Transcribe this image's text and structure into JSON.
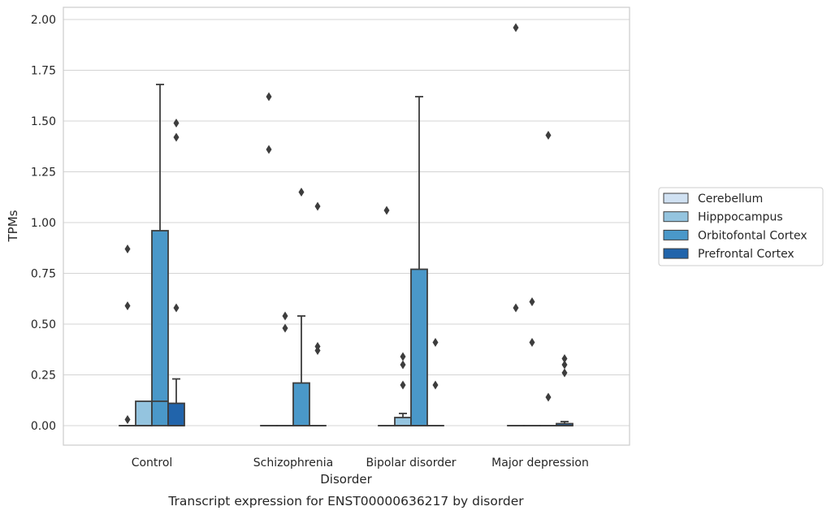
{
  "chart_data": {
    "type": "box",
    "title": "",
    "caption": "Transcript expression for ENST00000636217 by disorder",
    "xlabel": "Disorder",
    "ylabel": "TPMs",
    "ylim": [
      -0.09,
      2.06
    ],
    "yticks": [
      "0.00",
      "0.25",
      "0.50",
      "0.75",
      "1.00",
      "1.25",
      "1.50",
      "1.75",
      "2.00"
    ],
    "grid": "horizontal",
    "legend_position": "right",
    "categories": [
      "Control",
      "Schizophrenia",
      "Bipolar disorder",
      "Major depression"
    ],
    "series": [
      {
        "name": "Cerebellum",
        "color": "#d0e1f2",
        "boxes": [
          {
            "q1": 0,
            "median": 0,
            "q3": 0,
            "whisker_low": 0,
            "whisker_high": 0,
            "outliers": [
              0.03,
              0.59,
              0.87
            ]
          },
          {
            "q1": 0,
            "median": 0,
            "q3": 0,
            "whisker_low": 0,
            "whisker_high": 0,
            "outliers": [
              1.36,
              1.62
            ]
          },
          {
            "q1": 0,
            "median": 0,
            "q3": 0,
            "whisker_low": 0,
            "whisker_high": 0,
            "outliers": [
              1.06
            ]
          },
          {
            "q1": 0,
            "median": 0,
            "q3": 0,
            "whisker_low": 0,
            "whisker_high": 0,
            "outliers": [
              0.58,
              1.96
            ]
          }
        ]
      },
      {
        "name": "Hipppocampus",
        "color": "#94c4df",
        "boxes": [
          {
            "q1": 0,
            "median": 0,
            "q3": 0.12,
            "whisker_low": 0,
            "whisker_high": 0.12,
            "outliers": []
          },
          {
            "q1": 0,
            "median": 0,
            "q3": 0,
            "whisker_low": 0,
            "whisker_high": 0,
            "outliers": [
              0.48,
              0.54
            ]
          },
          {
            "q1": 0,
            "median": 0,
            "q3": 0.04,
            "whisker_low": 0,
            "whisker_high": 0.06,
            "outliers": [
              0.2,
              0.3,
              0.34
            ]
          },
          {
            "q1": 0,
            "median": 0,
            "q3": 0,
            "whisker_low": 0,
            "whisker_high": 0,
            "outliers": [
              0.41,
              0.61
            ]
          }
        ]
      },
      {
        "name": "Orbitofontal Cortex",
        "color": "#4a98c9",
        "boxes": [
          {
            "q1": 0,
            "median": 0.12,
            "q3": 0.96,
            "whisker_low": 0,
            "whisker_high": 1.68,
            "outliers": []
          },
          {
            "q1": 0,
            "median": 0,
            "q3": 0.21,
            "whisker_low": 0,
            "whisker_high": 0.54,
            "outliers": [
              1.15
            ]
          },
          {
            "q1": 0,
            "median": 0,
            "q3": 0.77,
            "whisker_low": 0,
            "whisker_high": 1.62,
            "outliers": []
          },
          {
            "q1": 0,
            "median": 0,
            "q3": 0,
            "whisker_low": 0,
            "whisker_high": 0,
            "outliers": [
              0.14,
              1.43
            ]
          }
        ]
      },
      {
        "name": "Prefrontal Cortex",
        "color": "#2164ab",
        "boxes": [
          {
            "q1": 0,
            "median": 0,
            "q3": 0.11,
            "whisker_low": 0,
            "whisker_high": 0.23,
            "outliers": [
              0.58,
              1.42,
              1.49
            ]
          },
          {
            "q1": 0,
            "median": 0,
            "q3": 0,
            "whisker_low": 0,
            "whisker_high": 0,
            "outliers": [
              0.37,
              0.39,
              1.08
            ]
          },
          {
            "q1": 0,
            "median": 0,
            "q3": 0,
            "whisker_low": 0,
            "whisker_high": 0,
            "outliers": [
              0.2,
              0.41
            ]
          },
          {
            "q1": 0,
            "median": 0,
            "q3": 0.01,
            "whisker_low": 0,
            "whisker_high": 0.02,
            "outliers": [
              0.26,
              0.3,
              0.33
            ]
          }
        ]
      }
    ]
  }
}
